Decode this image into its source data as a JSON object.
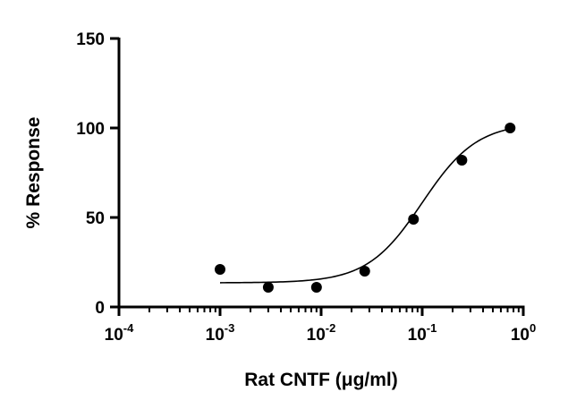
{
  "chart_data": {
    "type": "scatter",
    "xscale": "log",
    "xlim": [
      0.0001,
      1
    ],
    "ylim": [
      0,
      150
    ],
    "xlabel": "Rat CNTF (μg/ml)",
    "ylabel": "% Response",
    "x_ticks": [
      {
        "base": "10",
        "exp": "-4",
        "value": 0.0001
      },
      {
        "base": "10",
        "exp": "-3",
        "value": 0.001
      },
      {
        "base": "10",
        "exp": "-2",
        "value": 0.01
      },
      {
        "base": "10",
        "exp": "-1",
        "value": 0.1
      },
      {
        "base": "10",
        "exp": "0",
        "value": 1
      }
    ],
    "y_ticks": [
      {
        "label": "0",
        "value": 0
      },
      {
        "label": "50",
        "value": 50
      },
      {
        "label": "100",
        "value": 100
      },
      {
        "label": "150",
        "value": 150
      }
    ],
    "grid": false,
    "series": [
      {
        "points": [
          {
            "x": 0.001,
            "y": 21
          },
          {
            "x": 0.003,
            "y": 11
          },
          {
            "x": 0.009,
            "y": 11
          },
          {
            "x": 0.027,
            "y": 20
          },
          {
            "x": 0.082,
            "y": 49
          },
          {
            "x": 0.247,
            "y": 82
          },
          {
            "x": 0.741,
            "y": 100
          }
        ],
        "fit": {
          "bottom": 13.5,
          "top": 103,
          "ec50": 0.1,
          "hill": 1.6,
          "x_range": [
            0.001,
            0.741
          ]
        }
      }
    ]
  }
}
